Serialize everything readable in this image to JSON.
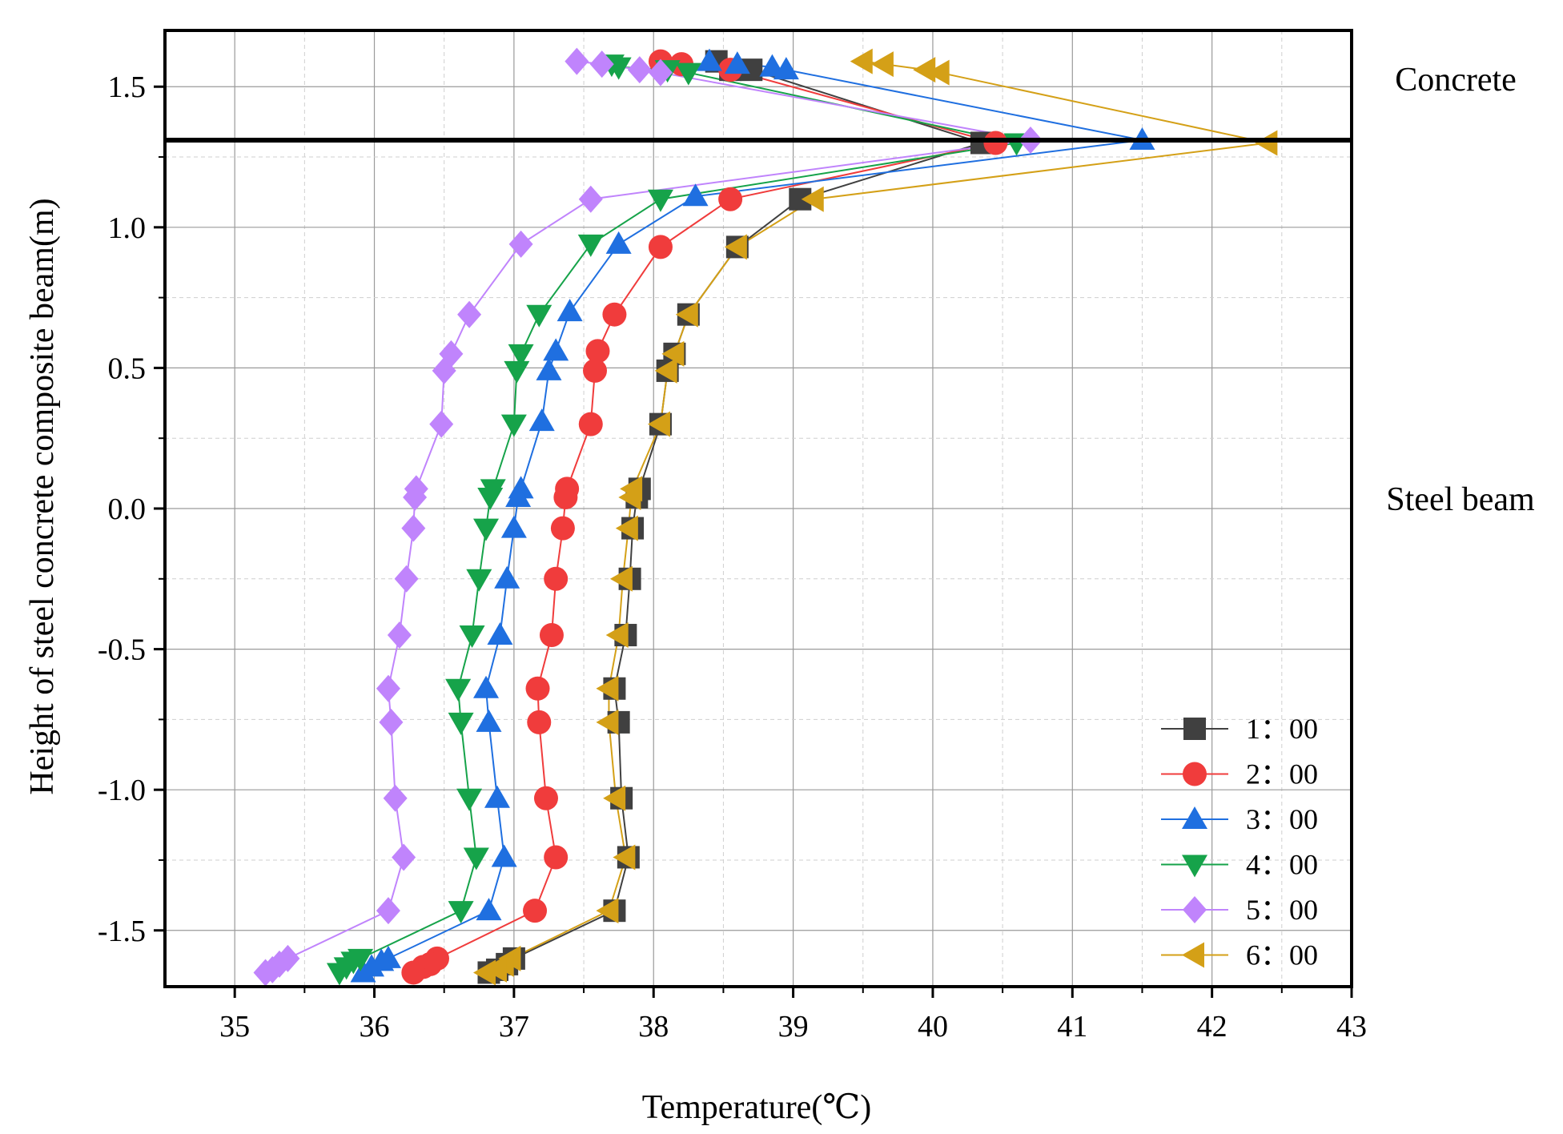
{
  "chart_data": {
    "type": "scatter",
    "title": "",
    "xlabel": "Temperature(℃)",
    "ylabel": "Height of steel concrete composite beam(m)",
    "xlim": [
      34.5,
      43
    ],
    "ylim": [
      -1.7,
      1.7
    ],
    "xticks": [
      "35",
      "36",
      "37",
      "38",
      "39",
      "40",
      "41",
      "42",
      "43"
    ],
    "yticks": [
      "1.5",
      "1.0",
      "0.5",
      "0.0",
      "-0.5",
      "-1.0",
      "-1.5"
    ],
    "grid": true,
    "legend_position": "bottom-right",
    "interface_height": 1.31,
    "region_labels": {
      "top": "Concrete",
      "bottom": "Steel beam"
    },
    "colors": {
      "1:00": "#404040",
      "2:00": "#f03c3c",
      "3:00": "#1f6fe0",
      "4:00": "#16a34a",
      "5:00": "#c084fc",
      "6:00": "#d4a017"
    },
    "series": [
      {
        "name": "1：00",
        "marker": "square",
        "color": "#404040",
        "points": [
          [
            38.45,
            1.59
          ],
          [
            38.55,
            1.56
          ],
          [
            38.7,
            1.56
          ],
          [
            40.35,
            1.3
          ],
          [
            39.05,
            1.1
          ],
          [
            38.6,
            0.93
          ],
          [
            38.25,
            0.69
          ],
          [
            38.15,
            0.55
          ],
          [
            38.1,
            0.49
          ],
          [
            38.05,
            0.3
          ],
          [
            37.9,
            0.07
          ],
          [
            37.88,
            0.04
          ],
          [
            37.85,
            -0.07
          ],
          [
            37.83,
            -0.25
          ],
          [
            37.8,
            -0.45
          ],
          [
            37.72,
            -0.64
          ],
          [
            37.75,
            -0.76
          ],
          [
            37.77,
            -1.03
          ],
          [
            37.82,
            -1.24
          ],
          [
            37.72,
            -1.43
          ],
          [
            37.0,
            -1.6
          ],
          [
            36.95,
            -1.62
          ],
          [
            36.88,
            -1.64
          ],
          [
            36.82,
            -1.65
          ]
        ]
      },
      {
        "name": "2：00",
        "marker": "circle",
        "color": "#f03c3c",
        "points": [
          [
            38.05,
            1.59
          ],
          [
            38.2,
            1.58
          ],
          [
            38.55,
            1.56
          ],
          [
            40.45,
            1.3
          ],
          [
            38.55,
            1.1
          ],
          [
            38.05,
            0.93
          ],
          [
            37.72,
            0.69
          ],
          [
            37.6,
            0.56
          ],
          [
            37.58,
            0.49
          ],
          [
            37.55,
            0.3
          ],
          [
            37.38,
            0.07
          ],
          [
            37.37,
            0.04
          ],
          [
            37.35,
            -0.07
          ],
          [
            37.3,
            -0.25
          ],
          [
            37.27,
            -0.45
          ],
          [
            37.17,
            -0.64
          ],
          [
            37.18,
            -0.76
          ],
          [
            37.23,
            -1.03
          ],
          [
            37.3,
            -1.24
          ],
          [
            37.15,
            -1.43
          ],
          [
            36.45,
            -1.6
          ],
          [
            36.4,
            -1.62
          ],
          [
            36.35,
            -1.63
          ],
          [
            36.28,
            -1.65
          ]
        ]
      },
      {
        "name": "3：00",
        "marker": "triangle-up",
        "color": "#1f6fe0",
        "points": [
          [
            38.4,
            1.59
          ],
          [
            38.6,
            1.58
          ],
          [
            38.85,
            1.57
          ],
          [
            38.95,
            1.56
          ],
          [
            41.5,
            1.31
          ],
          [
            38.3,
            1.11
          ],
          [
            37.75,
            0.94
          ],
          [
            37.4,
            0.7
          ],
          [
            37.3,
            0.56
          ],
          [
            37.25,
            0.49
          ],
          [
            37.2,
            0.31
          ],
          [
            37.05,
            0.07
          ],
          [
            37.03,
            0.04
          ],
          [
            37.0,
            -0.07
          ],
          [
            36.95,
            -0.25
          ],
          [
            36.9,
            -0.45
          ],
          [
            36.8,
            -0.64
          ],
          [
            36.82,
            -0.76
          ],
          [
            36.88,
            -1.03
          ],
          [
            36.93,
            -1.24
          ],
          [
            36.82,
            -1.43
          ],
          [
            36.1,
            -1.6
          ],
          [
            36.05,
            -1.61
          ],
          [
            35.98,
            -1.63
          ],
          [
            35.92,
            -1.65
          ]
        ]
      },
      {
        "name": "4：00",
        "marker": "triangle-down",
        "color": "#16a34a",
        "points": [
          [
            37.7,
            1.58
          ],
          [
            37.75,
            1.57
          ],
          [
            38.1,
            1.56
          ],
          [
            38.25,
            1.55
          ],
          [
            40.6,
            1.3
          ],
          [
            38.05,
            1.1
          ],
          [
            37.55,
            0.94
          ],
          [
            37.18,
            0.69
          ],
          [
            37.05,
            0.55
          ],
          [
            37.02,
            0.49
          ],
          [
            37.0,
            0.3
          ],
          [
            36.85,
            0.07
          ],
          [
            36.83,
            0.04
          ],
          [
            36.8,
            -0.07
          ],
          [
            36.75,
            -0.25
          ],
          [
            36.7,
            -0.45
          ],
          [
            36.6,
            -0.64
          ],
          [
            36.62,
            -0.76
          ],
          [
            36.68,
            -1.03
          ],
          [
            36.73,
            -1.24
          ],
          [
            36.62,
            -1.43
          ],
          [
            35.9,
            -1.6
          ],
          [
            35.85,
            -1.61
          ],
          [
            35.8,
            -1.63
          ],
          [
            35.75,
            -1.65
          ]
        ]
      },
      {
        "name": "5：00",
        "marker": "diamond",
        "color": "#c084fc",
        "points": [
          [
            37.45,
            1.59
          ],
          [
            37.63,
            1.58
          ],
          [
            37.9,
            1.56
          ],
          [
            38.05,
            1.55
          ],
          [
            40.7,
            1.31
          ],
          [
            37.55,
            1.1
          ],
          [
            37.05,
            0.94
          ],
          [
            36.68,
            0.69
          ],
          [
            36.55,
            0.55
          ],
          [
            36.5,
            0.49
          ],
          [
            36.48,
            0.3
          ],
          [
            36.3,
            0.07
          ],
          [
            36.29,
            0.04
          ],
          [
            36.28,
            -0.07
          ],
          [
            36.23,
            -0.25
          ],
          [
            36.18,
            -0.45
          ],
          [
            36.1,
            -0.64
          ],
          [
            36.12,
            -0.76
          ],
          [
            36.15,
            -1.03
          ],
          [
            36.21,
            -1.24
          ],
          [
            36.1,
            -1.43
          ],
          [
            35.38,
            -1.6
          ],
          [
            35.32,
            -1.62
          ],
          [
            35.27,
            -1.64
          ],
          [
            35.22,
            -1.65
          ]
        ]
      },
      {
        "name": "6：00",
        "marker": "triangle-left",
        "color": "#d4a017",
        "points": [
          [
            39.5,
            1.59
          ],
          [
            39.65,
            1.58
          ],
          [
            39.95,
            1.56
          ],
          [
            40.05,
            1.55
          ],
          [
            42.4,
            1.3
          ],
          [
            39.15,
            1.1
          ],
          [
            38.6,
            0.93
          ],
          [
            38.25,
            0.69
          ],
          [
            38.15,
            0.55
          ],
          [
            38.1,
            0.49
          ],
          [
            38.05,
            0.3
          ],
          [
            37.85,
            0.07
          ],
          [
            37.84,
            0.04
          ],
          [
            37.82,
            -0.07
          ],
          [
            37.78,
            -0.25
          ],
          [
            37.75,
            -0.45
          ],
          [
            37.68,
            -0.64
          ],
          [
            37.68,
            -0.76
          ],
          [
            37.73,
            -1.03
          ],
          [
            37.8,
            -1.24
          ],
          [
            37.68,
            -1.43
          ],
          [
            36.98,
            -1.6
          ],
          [
            36.93,
            -1.62
          ],
          [
            36.88,
            -1.64
          ],
          [
            36.8,
            -1.65
          ]
        ]
      }
    ]
  }
}
